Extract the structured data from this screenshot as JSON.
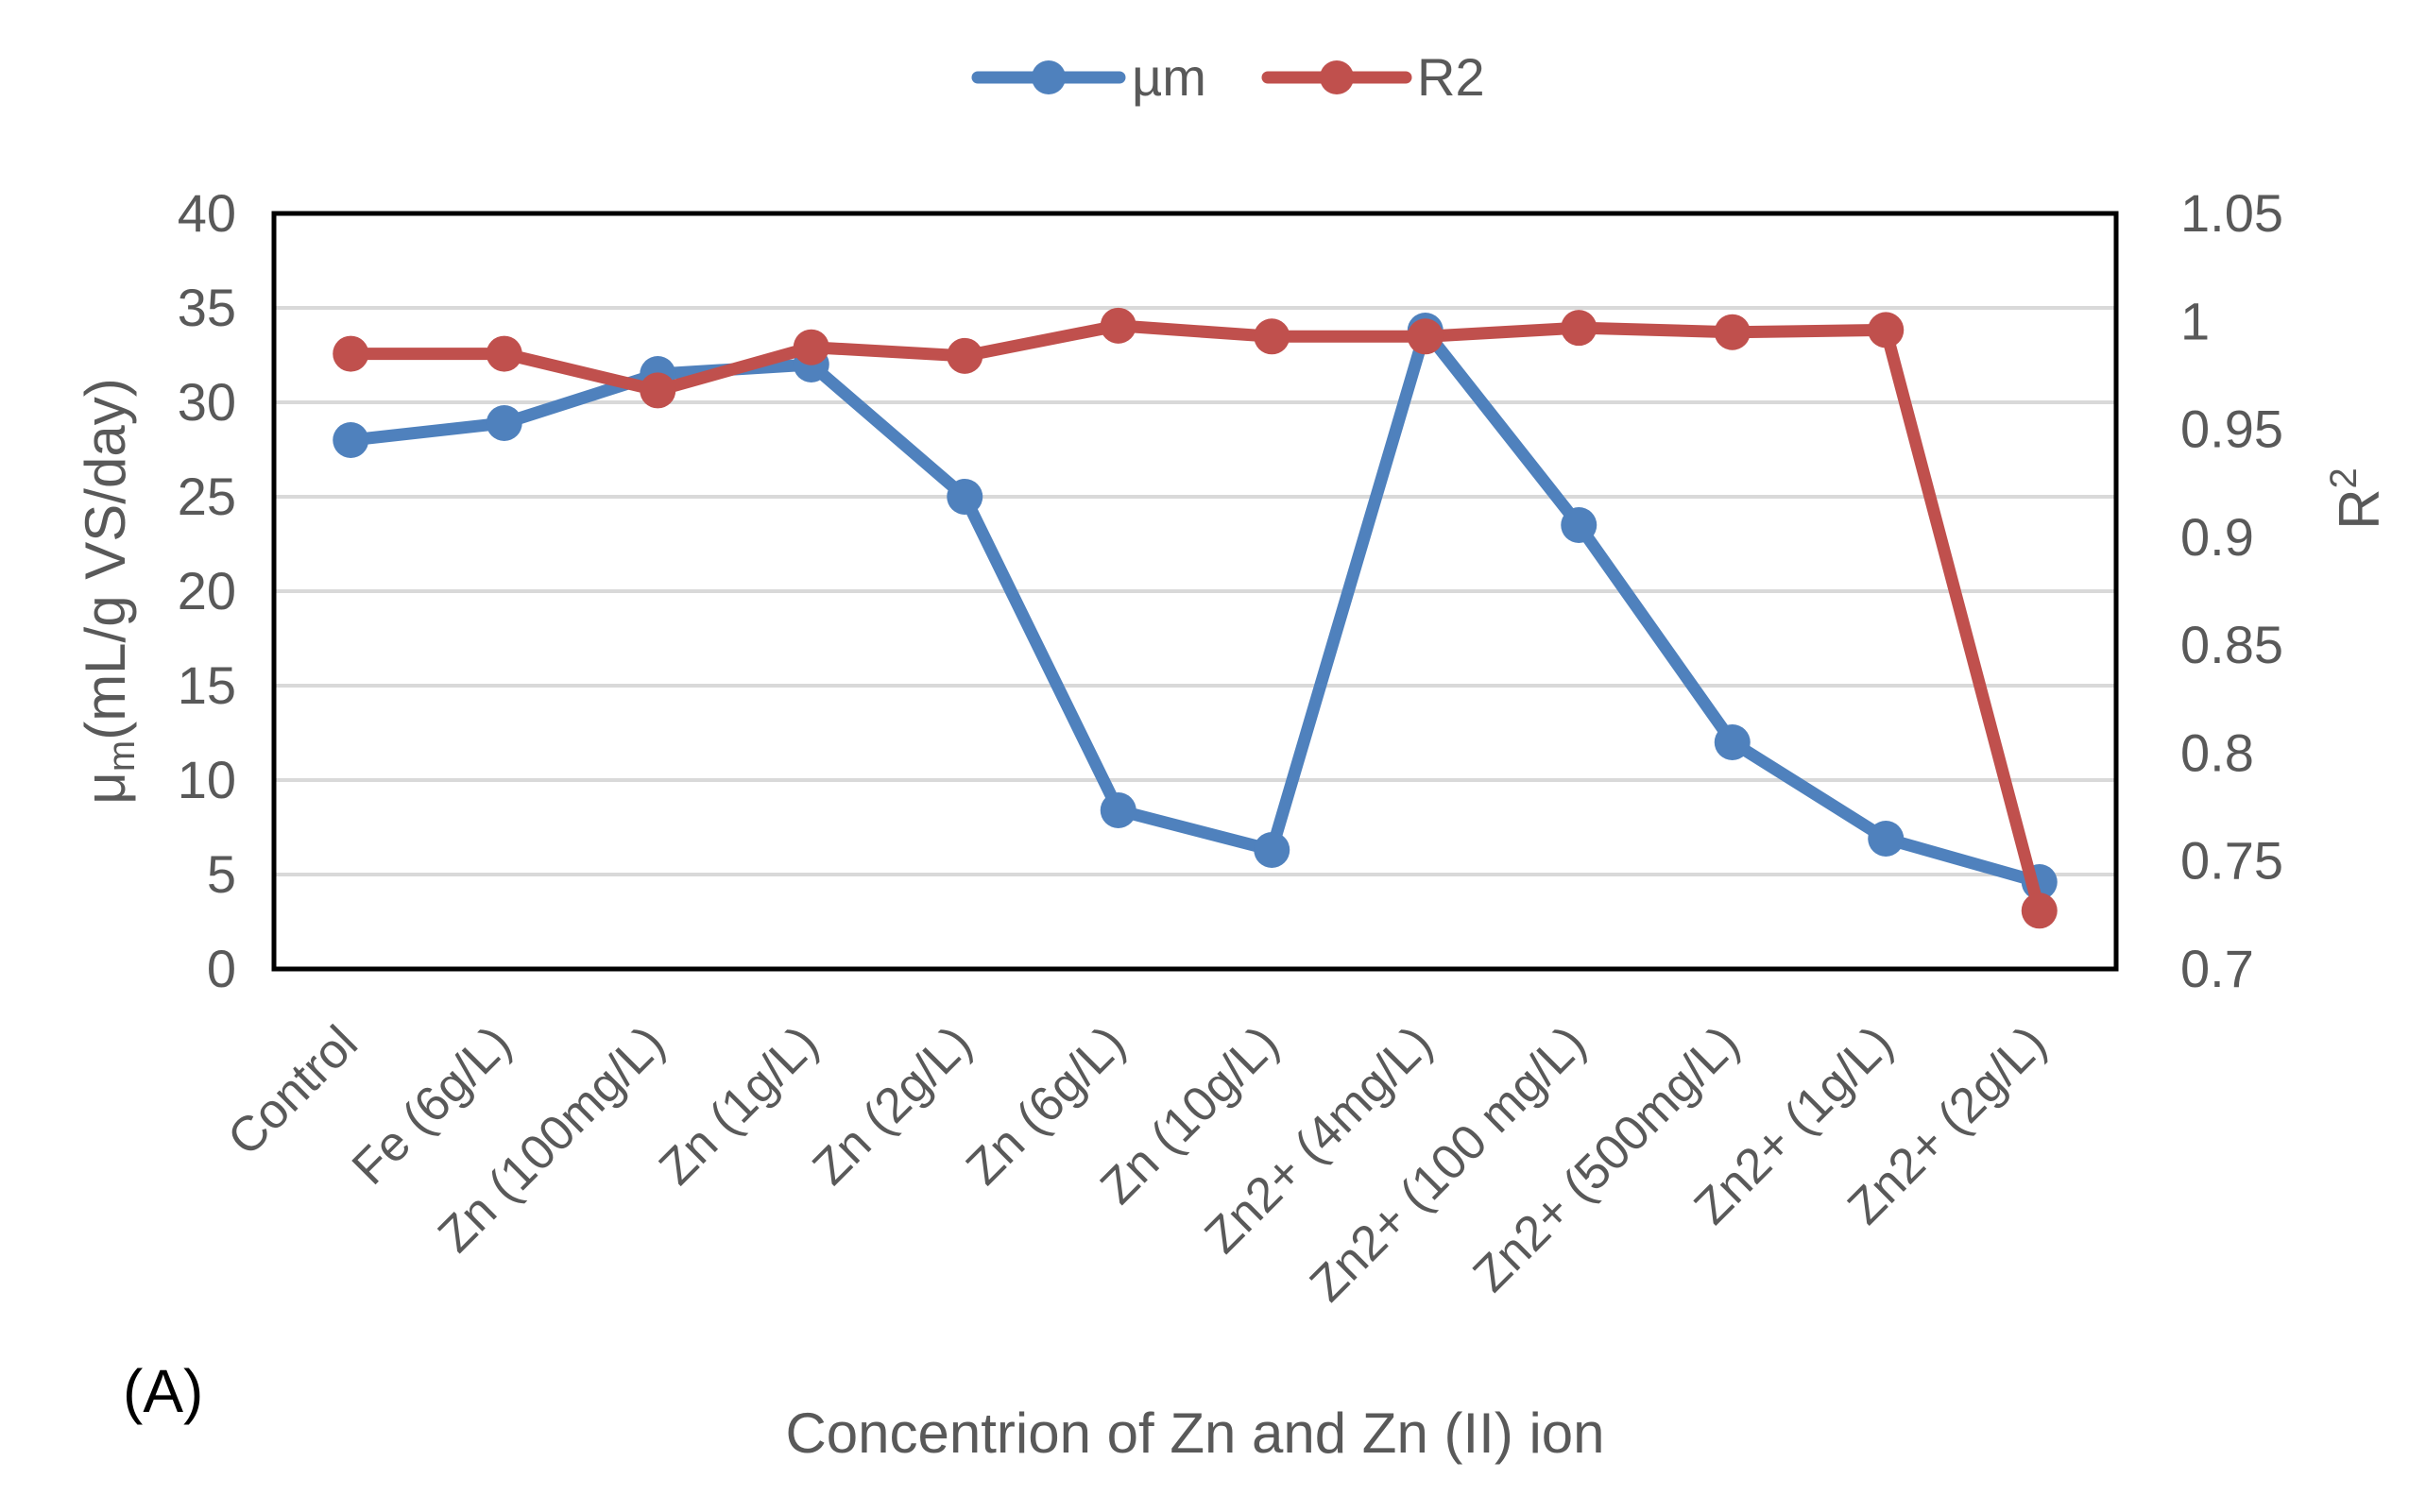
{
  "chart_data": {
    "type": "line",
    "title": "",
    "panel_label": "(A)",
    "xlabel": "Concentrion of Zn and Zn (II) ion",
    "ylabel": {
      "prefix": "μ",
      "subscript": "m",
      "suffix": "(mL/g VS/day)"
    },
    "y2label": {
      "base": "R",
      "superscript": "2"
    },
    "categories": [
      "Control",
      "Fe  (6g/L)",
      "Zn (100mg/L)",
      "Zn (1g/L)",
      "Zn (2g/L)",
      "Zn (6g/L)",
      "Zn (10g/L)",
      "Zn2+ (4mg/L)",
      "Zn2+ (100 mg/L)",
      "Zn2+ (500mg/L)",
      "Zn2+ (1g/L)",
      "Zn2+ (2g/L)"
    ],
    "ylim": [
      0,
      40
    ],
    "yticks": [
      0,
      5,
      10,
      15,
      20,
      25,
      30,
      35,
      40
    ],
    "y2lim": [
      0.7,
      1.05
    ],
    "y2ticks": [
      "0.7",
      "0.75",
      "0.8",
      "0.85",
      "0.9",
      "0.95",
      "1",
      "1.05"
    ],
    "grid": true,
    "legend_position": "top-center",
    "series": [
      {
        "name": "µm",
        "axis": "left",
        "color": "#4F81BD",
        "values": [
          28.0,
          28.9,
          31.5,
          32.0,
          25.0,
          8.4,
          6.3,
          33.8,
          23.5,
          12.0,
          6.9,
          4.6
        ]
      },
      {
        "name": "R2",
        "axis": "right",
        "color": "#C0504D",
        "values": [
          0.985,
          0.985,
          0.968,
          0.988,
          0.984,
          0.998,
          0.993,
          0.993,
          0.997,
          0.995,
          0.996,
          0.727
        ]
      }
    ]
  }
}
